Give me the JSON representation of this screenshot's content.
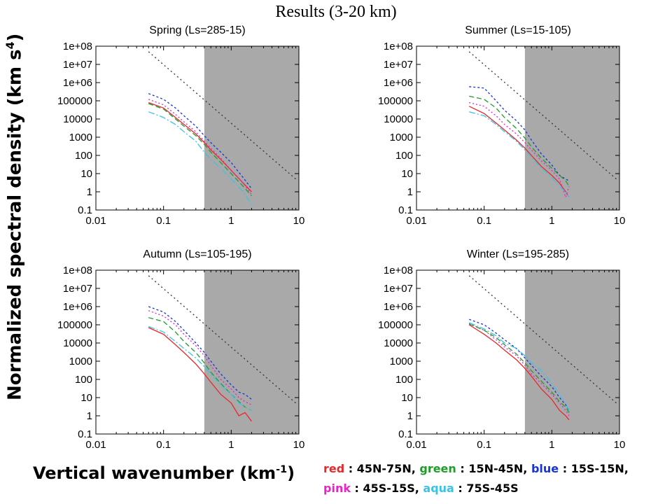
{
  "title": "Results (3-20 km)",
  "ylabel_main": "Normalized spectral density (km s",
  "ylabel_sup": "4",
  "ylabel_end": ")",
  "xlabel_main": "Vertical wavenumber (km",
  "xlabel_sup": "-1",
  "xlabel_end": ")",
  "legend": [
    [
      {
        "color_name": "red",
        "color": "#e8282b",
        "range": "45N-75N"
      },
      {
        "color_name": "green",
        "color": "#1f9d2a",
        "range": "15N-45N"
      },
      {
        "color_name": "blue",
        "color": "#1733d8",
        "range": "15S-15N"
      }
    ],
    [
      {
        "color_name": "pink",
        "color": "#e625c8",
        "range": "45S-15S"
      },
      {
        "color_name": "aqua",
        "color": "#3bc3e6",
        "range": "75S-45S"
      }
    ]
  ],
  "chart_data": [
    {
      "type": "line",
      "title": "Spring (Ls=285-15)",
      "xscale": "log",
      "yscale": "log",
      "xlim": [
        0.01,
        10
      ],
      "ylim": [
        0.1,
        100000000
      ],
      "x_ticks": [
        "0.01",
        "0.1",
        "1",
        "10"
      ],
      "y_ticks": [
        "1e+08",
        "1e+07",
        "1e+06",
        "100000",
        "10000",
        "1000",
        "100",
        "10",
        "1",
        "0.1"
      ],
      "shaded_x_range": [
        0.4,
        10
      ],
      "reference_line": {
        "x": [
          0.06,
          9
        ],
        "y": [
          50000000,
          5
        ]
      },
      "series": [
        {
          "name": "red",
          "x": [
            0.06,
            0.1,
            0.15,
            0.2,
            0.3,
            0.4,
            0.5,
            0.7,
            1.0,
            1.5,
            2.0
          ],
          "y": [
            80000,
            40000,
            12000,
            5000,
            1500,
            500,
            200,
            60,
            15,
            3,
            1
          ]
        },
        {
          "name": "blue",
          "x": [
            0.06,
            0.1,
            0.15,
            0.2,
            0.3,
            0.4,
            0.5,
            0.7,
            1.0,
            1.5,
            2.0
          ],
          "y": [
            250000,
            120000,
            40000,
            15000,
            4000,
            1200,
            500,
            150,
            40,
            6,
            1.5
          ]
        },
        {
          "name": "pink",
          "x": [
            0.06,
            0.1,
            0.15,
            0.2,
            0.3,
            0.4,
            0.5,
            0.7,
            1.0,
            1.5,
            2.0
          ],
          "y": [
            120000,
            60000,
            18000,
            7000,
            2000,
            600,
            250,
            70,
            15,
            3,
            0.7
          ]
        },
        {
          "name": "green",
          "x": [
            0.06,
            0.1,
            0.15,
            0.2,
            0.3,
            0.4,
            0.5,
            0.7,
            1.0,
            1.5,
            2.0
          ],
          "y": [
            70000,
            35000,
            10000,
            4000,
            1200,
            400,
            150,
            40,
            10,
            2,
            0.6
          ]
        },
        {
          "name": "aqua",
          "x": [
            0.06,
            0.1,
            0.15,
            0.2,
            0.3,
            0.4,
            0.5,
            0.7,
            1.0,
            1.5,
            2.0
          ],
          "y": [
            25000,
            12000,
            5000,
            2000,
            600,
            150,
            60,
            20,
            5,
            1,
            0.2
          ]
        }
      ]
    },
    {
      "type": "line",
      "title": "Summer (Ls=15-105)",
      "xscale": "log",
      "yscale": "log",
      "xlim": [
        0.01,
        10
      ],
      "ylim": [
        0.1,
        100000000
      ],
      "x_ticks": [
        "0.01",
        "0.1",
        "1",
        "10"
      ],
      "y_ticks": [
        "1e+08",
        "1e+07",
        "1e+06",
        "100000",
        "10000",
        "1000",
        "100",
        "10",
        "1",
        "0.1"
      ],
      "shaded_x_range": [
        0.4,
        10
      ],
      "reference_line": {
        "x": [
          0.06,
          9
        ],
        "y": [
          50000000,
          5
        ]
      },
      "series": [
        {
          "name": "red",
          "x": [
            0.06,
            0.1,
            0.15,
            0.2,
            0.3,
            0.4,
            0.5,
            0.7,
            1.0,
            1.3,
            1.6,
            1.8
          ],
          "y": [
            50000,
            20000,
            6000,
            2500,
            700,
            250,
            100,
            25,
            8,
            3,
            1,
            0.5
          ]
        },
        {
          "name": "blue",
          "x": [
            0.06,
            0.1,
            0.15,
            0.2,
            0.3,
            0.4,
            0.5,
            0.7,
            1.0,
            1.3,
            1.6,
            1.8
          ],
          "y": [
            600000,
            500000,
            100000,
            30000,
            8000,
            2500,
            700,
            120,
            30,
            8,
            5,
            4
          ]
        },
        {
          "name": "green",
          "x": [
            0.06,
            0.1,
            0.15,
            0.2,
            0.3,
            0.4,
            0.5,
            0.7,
            1.0,
            1.3,
            1.6,
            1.8
          ],
          "y": [
            180000,
            120000,
            40000,
            12000,
            3000,
            900,
            300,
            70,
            20,
            8,
            4,
            2
          ]
        },
        {
          "name": "pink",
          "x": [
            0.06,
            0.1,
            0.15,
            0.2,
            0.3,
            0.4,
            0.5,
            0.7,
            1.0,
            1.3,
            1.6,
            1.8
          ],
          "y": [
            80000,
            50000,
            15000,
            5000,
            1500,
            500,
            200,
            50,
            15,
            5,
            0.5,
            2
          ]
        },
        {
          "name": "aqua",
          "x": [
            0.06,
            0.1,
            0.15,
            0.2,
            0.3,
            0.4,
            0.5,
            0.7,
            1.0,
            1.3,
            1.6,
            1.8
          ],
          "y": [
            25000,
            15000,
            5000,
            2000,
            600,
            200,
            80,
            20,
            6,
            2,
            1,
            0.5
          ]
        }
      ]
    },
    {
      "type": "line",
      "title": "Autumn (Ls=105-195)",
      "xscale": "log",
      "yscale": "log",
      "xlim": [
        0.01,
        10
      ],
      "ylim": [
        0.1,
        100000000
      ],
      "x_ticks": [
        "0.01",
        "0.1",
        "1",
        "10"
      ],
      "y_ticks": [
        "1e+08",
        "1e+07",
        "1e+06",
        "100000",
        "10000",
        "1000",
        "100",
        "10",
        "1",
        "0.1"
      ],
      "shaded_x_range": [
        0.4,
        10
      ],
      "reference_line": {
        "x": [
          0.06,
          9
        ],
        "y": [
          50000000,
          5
        ]
      },
      "series": [
        {
          "name": "red",
          "x": [
            0.06,
            0.1,
            0.15,
            0.2,
            0.3,
            0.4,
            0.5,
            0.7,
            1.0,
            1.3,
            1.6,
            2.0
          ],
          "y": [
            70000,
            30000,
            8000,
            3000,
            700,
            200,
            70,
            15,
            5,
            1,
            1.5,
            0.5
          ]
        },
        {
          "name": "blue",
          "x": [
            0.06,
            0.1,
            0.15,
            0.2,
            0.3,
            0.4,
            0.5,
            0.7,
            1.0,
            1.3,
            1.6,
            2.0
          ],
          "y": [
            1000000,
            500000,
            150000,
            50000,
            10000,
            3000,
            1000,
            200,
            50,
            20,
            15,
            8
          ]
        },
        {
          "name": "pink",
          "x": [
            0.06,
            0.1,
            0.15,
            0.2,
            0.3,
            0.4,
            0.5,
            0.7,
            1.0,
            1.3,
            1.6,
            2.0
          ],
          "y": [
            600000,
            300000,
            100000,
            30000,
            7000,
            2000,
            600,
            100,
            30,
            10,
            6,
            4
          ]
        },
        {
          "name": "green",
          "x": [
            0.06,
            0.1,
            0.15,
            0.2,
            0.3,
            0.4,
            0.5,
            0.7,
            1.0,
            1.3,
            1.6,
            2.0
          ],
          "y": [
            250000,
            150000,
            40000,
            12000,
            3000,
            800,
            250,
            60,
            15,
            6,
            3,
            2
          ]
        },
        {
          "name": "aqua",
          "x": [
            0.06,
            0.1,
            0.15,
            0.2,
            0.3,
            0.4,
            0.5,
            0.7,
            1.0,
            1.3,
            1.6,
            2.0
          ],
          "y": [
            80000,
            40000,
            12000,
            5000,
            1500,
            500,
            200,
            50,
            15,
            5,
            3,
            2
          ]
        }
      ]
    },
    {
      "type": "line",
      "title": "Winter (Ls=195-285)",
      "xscale": "log",
      "yscale": "log",
      "xlim": [
        0.01,
        10
      ],
      "ylim": [
        0.1,
        100000000
      ],
      "x_ticks": [
        "0.01",
        "0.1",
        "1",
        "10"
      ],
      "y_ticks": [
        "1e+08",
        "1e+07",
        "1e+06",
        "100000",
        "10000",
        "1000",
        "100",
        "10",
        "1",
        "0.1"
      ],
      "shaded_x_range": [
        0.4,
        10
      ],
      "reference_line": {
        "x": [
          0.06,
          9
        ],
        "y": [
          50000000,
          5
        ]
      },
      "series": [
        {
          "name": "red",
          "x": [
            0.06,
            0.1,
            0.15,
            0.2,
            0.3,
            0.4,
            0.5,
            0.7,
            1.0,
            1.3,
            1.6,
            1.8
          ],
          "y": [
            100000,
            30000,
            10000,
            4000,
            1200,
            400,
            150,
            30,
            8,
            2,
            1,
            0.6
          ]
        },
        {
          "name": "blue",
          "x": [
            0.06,
            0.1,
            0.15,
            0.2,
            0.3,
            0.4,
            0.5,
            0.7,
            1.0,
            1.3,
            1.6,
            1.8
          ],
          "y": [
            200000,
            100000,
            35000,
            15000,
            5000,
            1500,
            600,
            150,
            40,
            10,
            4,
            2
          ]
        },
        {
          "name": "pink",
          "x": [
            0.06,
            0.1,
            0.15,
            0.2,
            0.3,
            0.4,
            0.5,
            0.7,
            1.0,
            1.3,
            1.6,
            1.8
          ],
          "y": [
            120000,
            50000,
            15000,
            6000,
            2000,
            600,
            200,
            60,
            15,
            5,
            2,
            1
          ]
        },
        {
          "name": "green",
          "x": [
            0.06,
            0.1,
            0.15,
            0.2,
            0.3,
            0.4,
            0.5,
            0.7,
            1.0,
            1.3,
            1.6,
            1.8
          ],
          "y": [
            110000,
            50000,
            20000,
            8000,
            2500,
            800,
            300,
            80,
            20,
            6,
            3,
            1.5
          ]
        },
        {
          "name": "aqua",
          "x": [
            0.06,
            0.1,
            0.15,
            0.2,
            0.3,
            0.4,
            0.5,
            0.7,
            1.0,
            1.3,
            1.6,
            1.8
          ],
          "y": [
            130000,
            60000,
            25000,
            10000,
            5000,
            2000,
            800,
            300,
            60,
            15,
            5,
            2
          ]
        }
      ]
    }
  ]
}
